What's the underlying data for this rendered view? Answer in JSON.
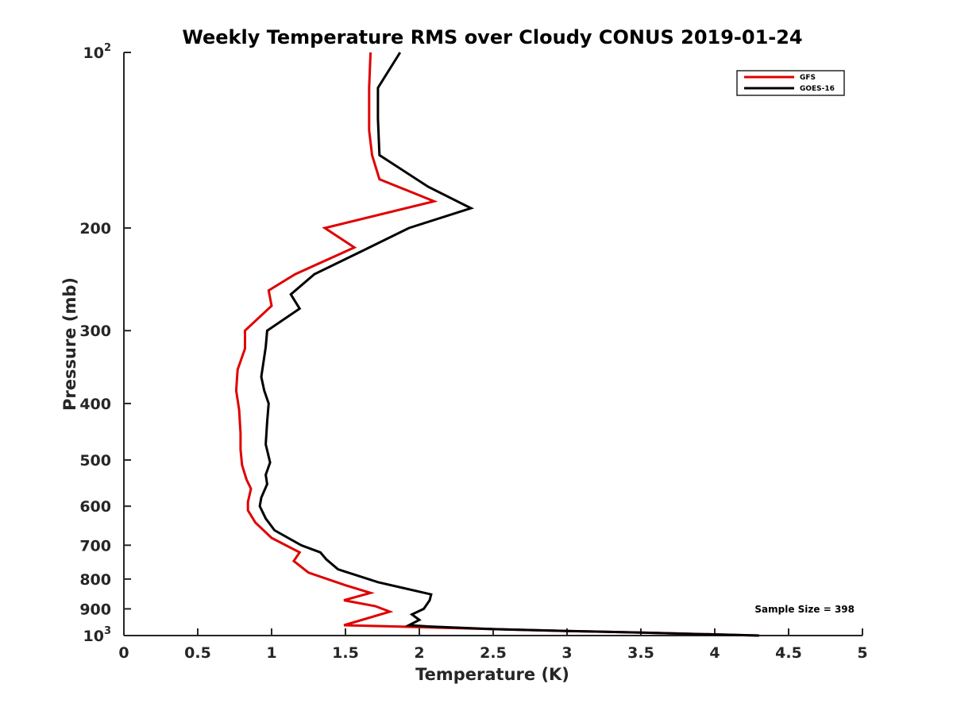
{
  "chart_data": {
    "type": "line",
    "title": "Weekly Temperature RMS over Cloudy CONUS 2019-01-24",
    "xlabel": "Temperature (K)",
    "ylabel": "Pressure (mb)",
    "xlim": [
      0,
      5
    ],
    "ylim": [
      100,
      1000
    ],
    "yscale": "log",
    "y_reversed": true,
    "grid": false,
    "legend_location": "top-right",
    "x_ticks": [
      0,
      0.5,
      1,
      1.5,
      2,
      2.5,
      3,
      3.5,
      4,
      4.5,
      5
    ],
    "x_tick_labels": [
      "0",
      "0.5",
      "1",
      "1.5",
      "2",
      "2.5",
      "3",
      "3.5",
      "4",
      "4.5",
      "5"
    ],
    "y_ticks": [
      100,
      200,
      300,
      400,
      500,
      600,
      700,
      800,
      900,
      1000
    ],
    "y_tick_labels": [
      {
        "base": "10",
        "exp": "2"
      },
      {
        "base": "200",
        "exp": ""
      },
      {
        "base": "300",
        "exp": ""
      },
      {
        "base": "400",
        "exp": ""
      },
      {
        "base": "500",
        "exp": ""
      },
      {
        "base": "600",
        "exp": ""
      },
      {
        "base": "700",
        "exp": ""
      },
      {
        "base": "800",
        "exp": ""
      },
      {
        "base": "900",
        "exp": ""
      },
      {
        "base": "10",
        "exp": "3"
      }
    ],
    "series": [
      {
        "name": "GFS",
        "color": "#e00000",
        "points": [
          [
            1.67,
            100
          ],
          [
            1.66,
            115
          ],
          [
            1.66,
            136
          ],
          [
            1.68,
            150
          ],
          [
            1.73,
            165
          ],
          [
            2.1,
            180
          ],
          [
            1.36,
            200
          ],
          [
            1.56,
            216
          ],
          [
            1.16,
            240
          ],
          [
            0.98,
            256
          ],
          [
            1.0,
            272
          ],
          [
            0.82,
            300
          ],
          [
            0.82,
            322
          ],
          [
            0.77,
            350
          ],
          [
            0.76,
            380
          ],
          [
            0.78,
            410
          ],
          [
            0.79,
            450
          ],
          [
            0.79,
            480
          ],
          [
            0.8,
            510
          ],
          [
            0.83,
            540
          ],
          [
            0.86,
            560
          ],
          [
            0.84,
            590
          ],
          [
            0.84,
            610
          ],
          [
            0.89,
            640
          ],
          [
            1.0,
            680
          ],
          [
            1.19,
            720
          ],
          [
            1.15,
            745
          ],
          [
            1.25,
            780
          ],
          [
            1.5,
            820
          ],
          [
            1.67,
            845
          ],
          [
            1.49,
            870
          ],
          [
            1.7,
            890
          ],
          [
            1.8,
            910
          ],
          [
            1.49,
            960
          ],
          [
            1.85,
            965
          ],
          [
            2.5,
            975
          ],
          [
            3.0,
            982
          ],
          [
            3.5,
            988
          ],
          [
            4.3,
            1000
          ]
        ]
      },
      {
        "name": "GOES-16",
        "color": "#000000",
        "points": [
          [
            1.87,
            100
          ],
          [
            1.72,
            115
          ],
          [
            1.72,
            130
          ],
          [
            1.73,
            150
          ],
          [
            2.06,
            170
          ],
          [
            2.35,
            185
          ],
          [
            1.93,
            200
          ],
          [
            1.63,
            218
          ],
          [
            1.29,
            240
          ],
          [
            1.13,
            260
          ],
          [
            1.19,
            275
          ],
          [
            0.97,
            300
          ],
          [
            0.96,
            320
          ],
          [
            0.93,
            360
          ],
          [
            0.95,
            380
          ],
          [
            0.98,
            400
          ],
          [
            0.97,
            430
          ],
          [
            0.96,
            470
          ],
          [
            0.99,
            505
          ],
          [
            0.96,
            530
          ],
          [
            0.97,
            550
          ],
          [
            0.93,
            580
          ],
          [
            0.92,
            600
          ],
          [
            0.96,
            630
          ],
          [
            1.02,
            660
          ],
          [
            1.2,
            700
          ],
          [
            1.33,
            720
          ],
          [
            1.37,
            740
          ],
          [
            1.45,
            770
          ],
          [
            1.72,
            810
          ],
          [
            2.08,
            850
          ],
          [
            2.07,
            870
          ],
          [
            2.03,
            900
          ],
          [
            1.95,
            920
          ],
          [
            2.0,
            940
          ],
          [
            1.93,
            960
          ],
          [
            2.07,
            965
          ],
          [
            2.5,
            975
          ],
          [
            3.0,
            982
          ],
          [
            3.5,
            988
          ],
          [
            4.3,
            1000
          ]
        ]
      }
    ],
    "annotations": [
      {
        "text": "Sample Size = 398",
        "location": "bottom-right"
      }
    ]
  }
}
